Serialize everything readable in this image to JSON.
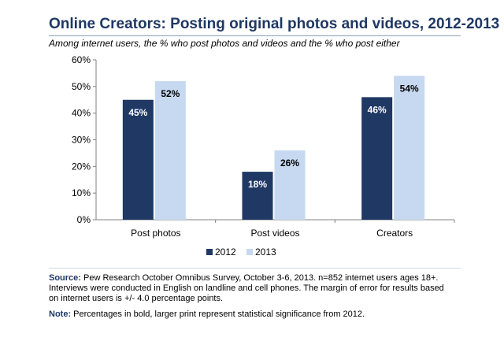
{
  "title": "Online Creators: Posting original photos and videos, 2012-2013",
  "subtitle": "Among internet users, the % who post photos and videos and the % who post either",
  "source": {
    "label": "Source:",
    "text": "Pew Research October Omnibus Survey, October 3-6, 2013. n=852 internet users ages 18+. Interviews were conducted in English on landline and cell phones.  The margin of error for results based on internet users is +/- 4.0 percentage points."
  },
  "note": {
    "label": "Note:",
    "text": "Percentages in bold, larger print represent statistical significance from 2012."
  },
  "chart_data": {
    "type": "bar",
    "title": "Online Creators: Posting original photos and videos, 2012-2013",
    "subtitle": "Among internet users, the % who post photos and videos and the % who post either",
    "categories": [
      "Post photos",
      "Post videos",
      "Creators"
    ],
    "series": [
      {
        "name": "2012",
        "values": [
          45,
          18,
          46
        ],
        "labels": [
          "45%",
          "18%",
          "46%"
        ],
        "color": "#1f3864"
      },
      {
        "name": "2013",
        "values": [
          52,
          26,
          54
        ],
        "labels": [
          "52%",
          "26%",
          "54%"
        ],
        "color": "#c6d9f1"
      }
    ],
    "ylim": [
      0,
      60
    ],
    "yticks": [
      0,
      10,
      20,
      30,
      40,
      50,
      60
    ],
    "ytick_labels": [
      "0%",
      "10%",
      "20%",
      "30%",
      "40%",
      "50%",
      "60%"
    ],
    "grid": false,
    "legend": "bottom-center",
    "colors": {
      "axis": "#808080",
      "label_dark": "#ffffff",
      "label_light": "#000000"
    }
  }
}
